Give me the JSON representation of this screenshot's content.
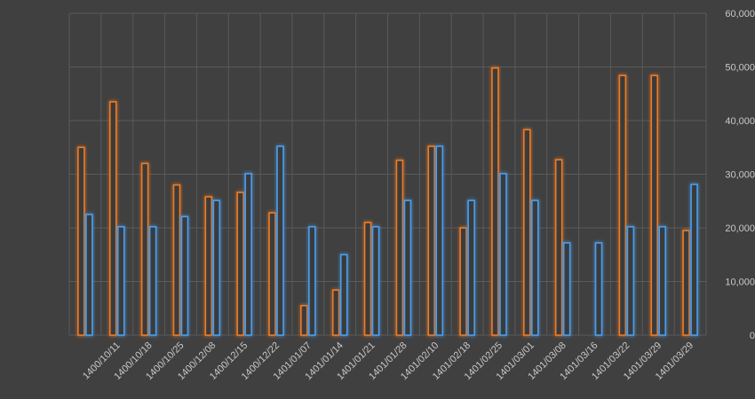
{
  "chart_data": {
    "type": "bar",
    "categories": [
      null,
      "1400/10/11",
      "1400/10/18",
      "1400/10/25",
      "1400/12/08",
      "1400/12/15",
      "1400/12/22",
      "1401/01/07",
      "1401/01/14",
      "1401/01/21",
      "1401/01/28",
      "1401/02/10",
      "1401/02/18",
      "1401/02/25",
      "1401/03/01",
      "1401/03/08",
      "1401/03/16",
      "1401/03/22",
      "1401/03/29",
      "1401/03/29"
    ],
    "series": [
      {
        "color": "#f07b22",
        "values": [
          35000,
          43500,
          32000,
          28000,
          25800,
          26600,
          22800,
          5500,
          8400,
          21000,
          32600,
          35200,
          20000,
          49800,
          38300,
          32700,
          null,
          48400,
          48400,
          19500
        ]
      },
      {
        "color": "#4a9ff0",
        "values": [
          22500,
          20200,
          20200,
          22100,
          25100,
          30100,
          35200,
          20200,
          15000,
          20200,
          25100,
          35200,
          25100,
          30100,
          25100,
          17200,
          17200,
          20200,
          20200,
          28100
        ]
      }
    ],
    "ylim": [
      0,
      60000
    ],
    "yticks": [
      0,
      {
        "value": 10000,
        "label": "10,000"
      },
      {
        "value": 20000,
        "label": "20,000"
      },
      {
        "value": 30000,
        "label": "30,000"
      },
      {
        "value": 40000,
        "label": "40,000"
      },
      {
        "value": 50000,
        "label": "50,000"
      },
      {
        "value": 60000,
        "label": "60,000"
      }
    ],
    "y_axis_side": "right",
    "grid": true
  }
}
